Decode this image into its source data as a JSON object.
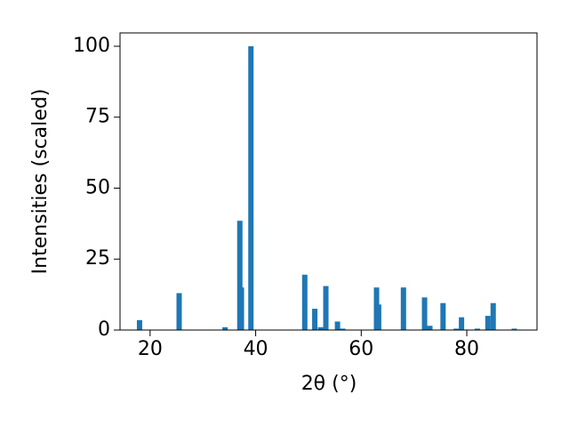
{
  "chart_data": {
    "type": "bar",
    "xlabel": "2θ (°)",
    "ylabel": "Intensities (scaled)",
    "x": [
      18.0,
      25.5,
      34.2,
      37.0,
      37.3,
      39.1,
      49.3,
      51.2,
      52.3,
      53.3,
      55.5,
      56.5,
      62.9,
      63.3,
      68.0,
      72.0,
      73.0,
      75.5,
      78.0,
      79.0,
      82.0,
      84.0,
      85.0,
      89.0
    ],
    "values": [
      3.5,
      13,
      1,
      38.5,
      15,
      100,
      19.5,
      7.5,
      1,
      15.5,
      3,
      0.5,
      15,
      9,
      15,
      11.5,
      1.5,
      9.5,
      0.5,
      4.5,
      0.5,
      5,
      9.5,
      0.5
    ],
    "color": "#1f77b4",
    "xlim": [
      14.3,
      93.3
    ],
    "xticks": [
      20,
      40,
      60,
      80
    ],
    "ylim": [
      0,
      104.7
    ],
    "yticks": [
      0,
      25,
      50,
      75,
      100
    ],
    "grid": false
  }
}
